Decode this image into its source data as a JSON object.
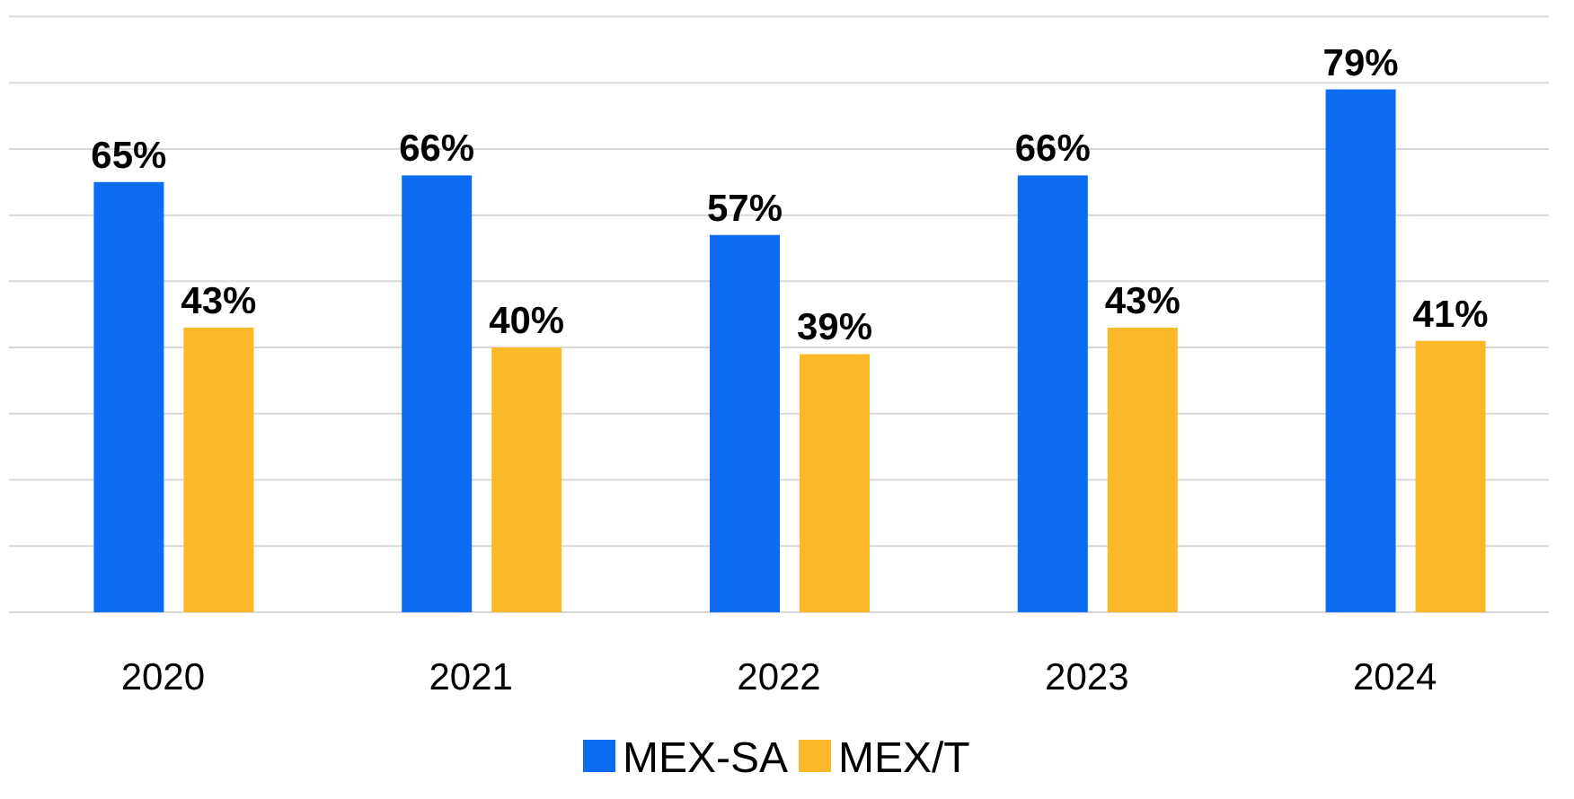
{
  "chart_data": {
    "type": "bar",
    "categories": [
      "2020",
      "2021",
      "2022",
      "2023",
      "2024"
    ],
    "series": [
      {
        "name": "MEX-SA",
        "color": "#0b6cf2",
        "values": [
          65,
          66,
          57,
          66,
          79
        ],
        "value_labels": [
          "65%",
          "66%",
          "57%",
          "66%",
          "79%"
        ]
      },
      {
        "name": "MEX/T",
        "color": "#fbb829",
        "values": [
          43,
          40,
          39,
          43,
          41
        ],
        "value_labels": [
          "43%",
          "40%",
          "39%",
          "43%",
          "41%"
        ]
      }
    ],
    "grid": "y",
    "tick_labels": "x",
    "legend": "bottom"
  }
}
